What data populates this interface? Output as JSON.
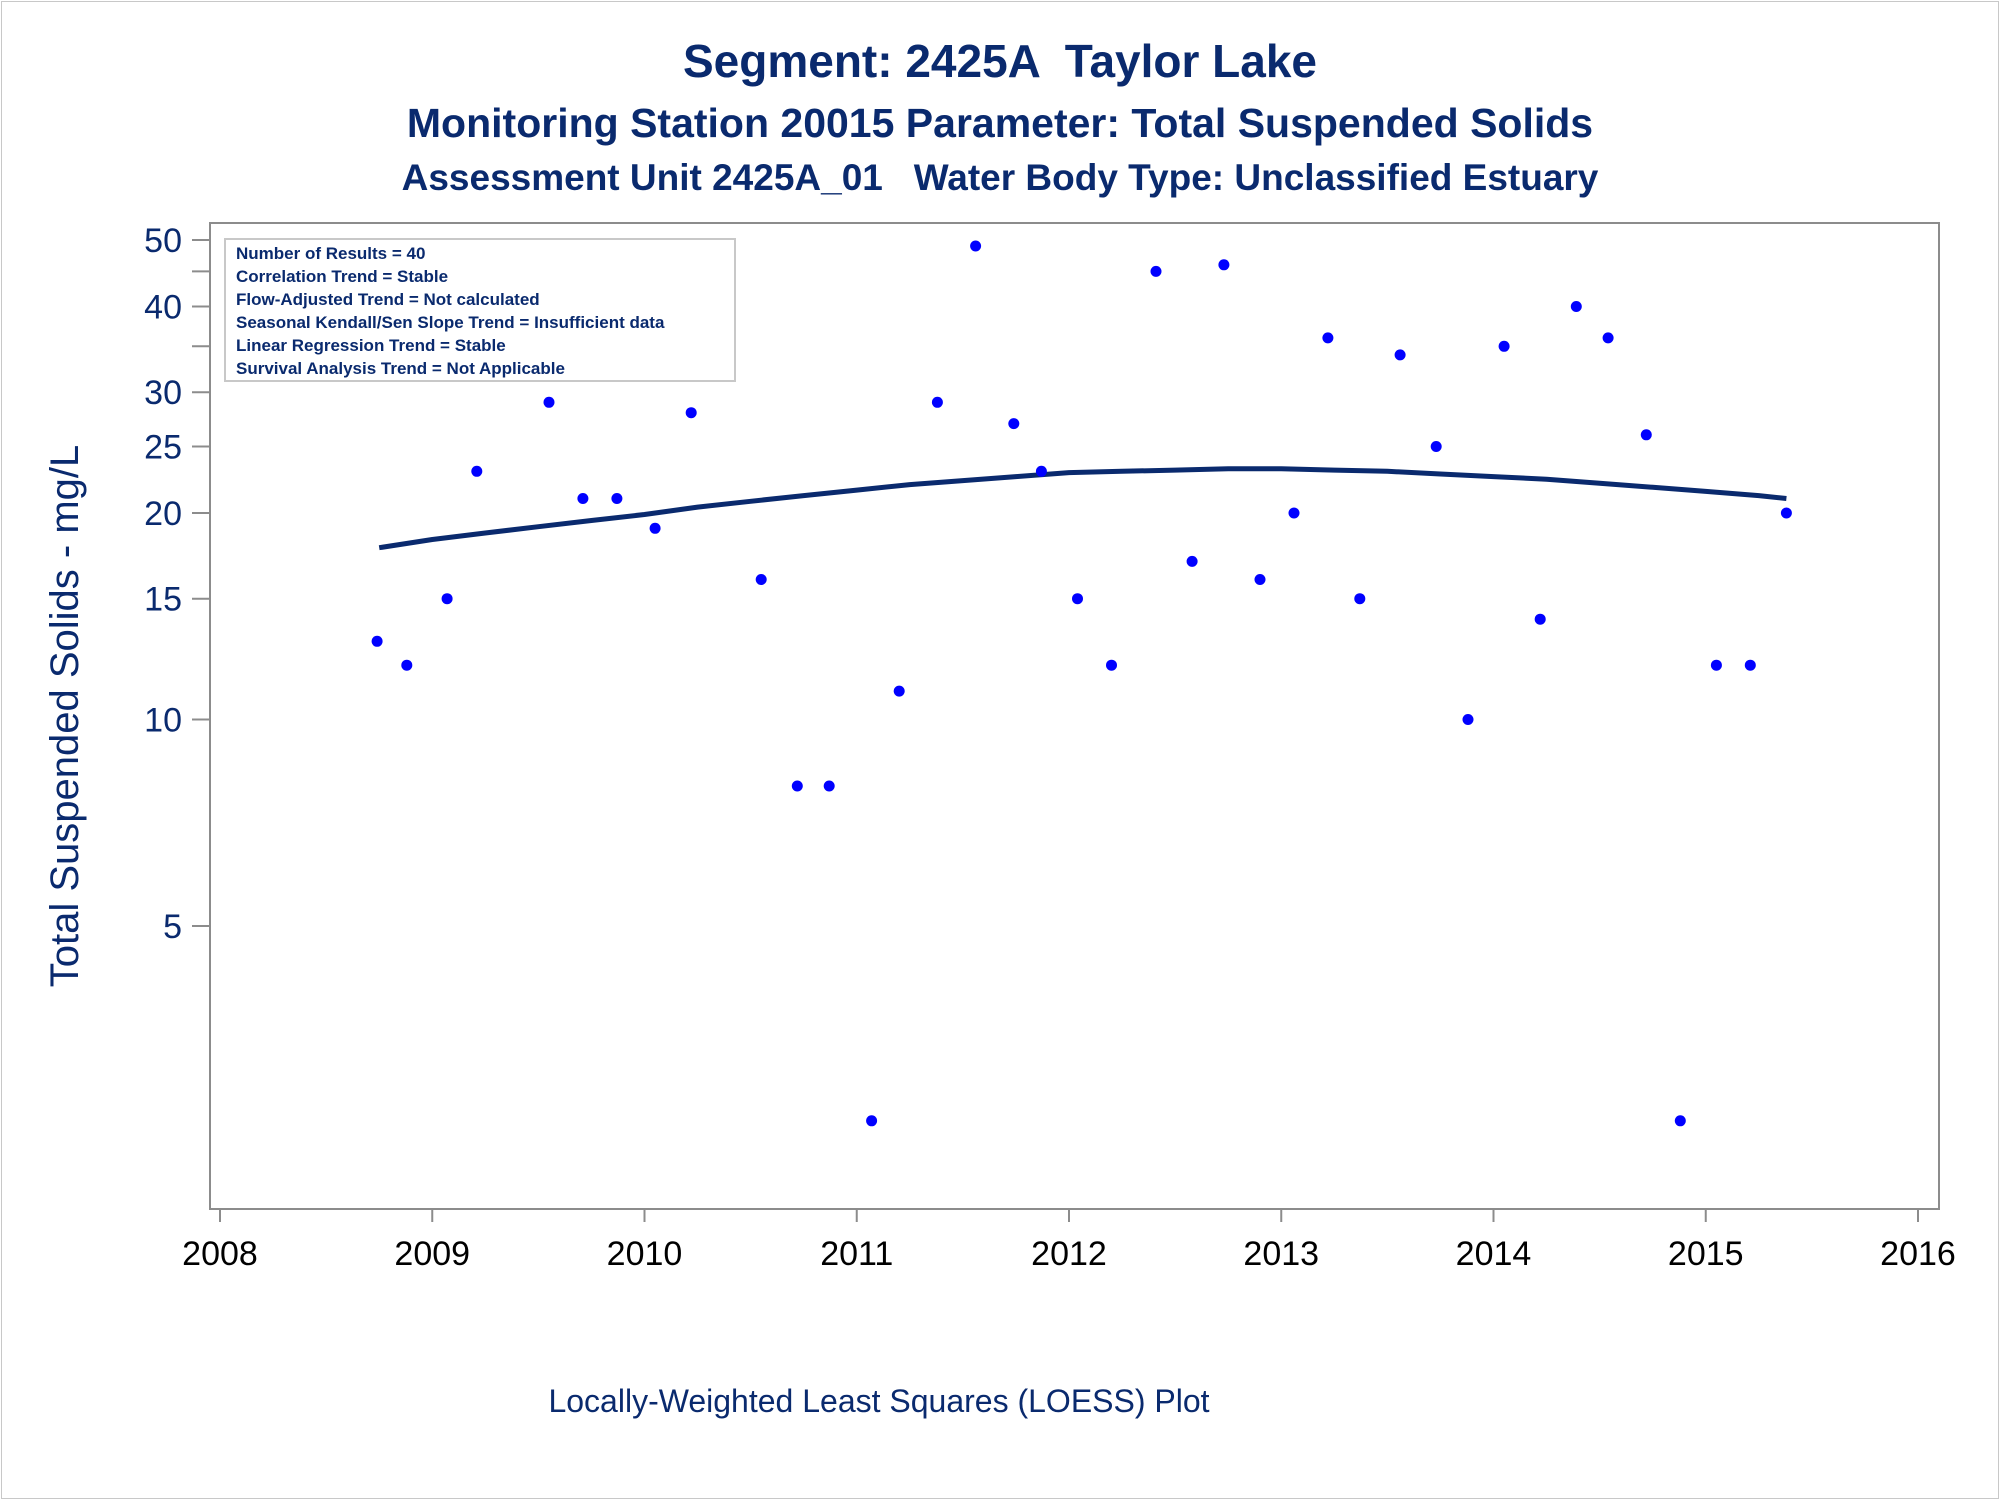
{
  "titles": {
    "line1": "Segment: 2425A  Taylor Lake",
    "line2": "Monitoring Station 20015 Parameter: Total Suspended Solids",
    "line3": "Assessment Unit 2425A_01   Water Body Type: Unclassified Estuary"
  },
  "info_box": [
    "Number of Results = 40",
    "Correlation Trend = Stable",
    "Flow-Adjusted Trend = Not calculated",
    "Seasonal Kendall/Sen Slope Trend = Insufficient data",
    "Linear Regression Trend = Stable",
    "Survival Analysis Trend = Not Applicable"
  ],
  "footer": "Locally-Weighted Least Squares (LOESS) Plot",
  "colors": {
    "text": "#0a2a6e",
    "points": "#0000ff",
    "trend": "#0a2a6e",
    "frame": "#8c8c8c"
  },
  "chart_data": {
    "type": "scatter",
    "ylabel": "Total Suspended Solids - mg/L",
    "y_scale": "log",
    "ylim": [
      2.5,
      52
    ],
    "y_ticks": [
      50,
      40,
      30,
      25,
      20,
      15,
      10,
      5
    ],
    "y_minor_ticks": [
      45,
      35
    ],
    "xlim": [
      2008,
      2016
    ],
    "x_ticks": [
      2008,
      2009,
      2010,
      2011,
      2012,
      2013,
      2014,
      2015,
      2016
    ],
    "grid": false,
    "points": [
      {
        "x": 2008.74,
        "y": 13
      },
      {
        "x": 2008.88,
        "y": 12
      },
      {
        "x": 2009.07,
        "y": 15
      },
      {
        "x": 2009.21,
        "y": 23
      },
      {
        "x": 2009.38,
        "y": 34
      },
      {
        "x": 2009.55,
        "y": 29
      },
      {
        "x": 2009.71,
        "y": 21
      },
      {
        "x": 2009.87,
        "y": 21
      },
      {
        "x": 2010.05,
        "y": 19
      },
      {
        "x": 2010.22,
        "y": 28
      },
      {
        "x": 2010.55,
        "y": 16
      },
      {
        "x": 2010.72,
        "y": 8
      },
      {
        "x": 2010.87,
        "y": 8
      },
      {
        "x": 2011.07,
        "y": 2.6
      },
      {
        "x": 2011.2,
        "y": 11
      },
      {
        "x": 2011.38,
        "y": 29
      },
      {
        "x": 2011.56,
        "y": 49
      },
      {
        "x": 2011.74,
        "y": 27
      },
      {
        "x": 2011.87,
        "y": 23
      },
      {
        "x": 2012.04,
        "y": 15
      },
      {
        "x": 2012.2,
        "y": 12
      },
      {
        "x": 2012.41,
        "y": 45
      },
      {
        "x": 2012.58,
        "y": 17
      },
      {
        "x": 2012.73,
        "y": 46
      },
      {
        "x": 2012.9,
        "y": 16
      },
      {
        "x": 2013.06,
        "y": 20
      },
      {
        "x": 2013.22,
        "y": 36
      },
      {
        "x": 2013.37,
        "y": 15
      },
      {
        "x": 2013.56,
        "y": 34
      },
      {
        "x": 2013.73,
        "y": 25
      },
      {
        "x": 2013.88,
        "y": 10
      },
      {
        "x": 2014.05,
        "y": 35
      },
      {
        "x": 2014.22,
        "y": 14
      },
      {
        "x": 2014.39,
        "y": 40
      },
      {
        "x": 2014.54,
        "y": 36
      },
      {
        "x": 2014.72,
        "y": 26
      },
      {
        "x": 2014.88,
        "y": 2.6
      },
      {
        "x": 2015.05,
        "y": 12
      },
      {
        "x": 2015.21,
        "y": 12
      },
      {
        "x": 2015.38,
        "y": 20
      }
    ],
    "loess": [
      {
        "x": 2008.75,
        "y": 17.8
      },
      {
        "x": 2009.0,
        "y": 18.3
      },
      {
        "x": 2009.25,
        "y": 18.7
      },
      {
        "x": 2009.5,
        "y": 19.1
      },
      {
        "x": 2009.75,
        "y": 19.5
      },
      {
        "x": 2010.0,
        "y": 19.9
      },
      {
        "x": 2010.25,
        "y": 20.4
      },
      {
        "x": 2010.5,
        "y": 20.8
      },
      {
        "x": 2010.75,
        "y": 21.2
      },
      {
        "x": 2011.0,
        "y": 21.6
      },
      {
        "x": 2011.25,
        "y": 22.0
      },
      {
        "x": 2011.5,
        "y": 22.3
      },
      {
        "x": 2011.75,
        "y": 22.6
      },
      {
        "x": 2012.0,
        "y": 22.9
      },
      {
        "x": 2012.25,
        "y": 23.0
      },
      {
        "x": 2012.5,
        "y": 23.1
      },
      {
        "x": 2012.75,
        "y": 23.2
      },
      {
        "x": 2013.0,
        "y": 23.2
      },
      {
        "x": 2013.25,
        "y": 23.1
      },
      {
        "x": 2013.5,
        "y": 23.0
      },
      {
        "x": 2013.75,
        "y": 22.8
      },
      {
        "x": 2014.0,
        "y": 22.6
      },
      {
        "x": 2014.25,
        "y": 22.4
      },
      {
        "x": 2014.5,
        "y": 22.1
      },
      {
        "x": 2014.75,
        "y": 21.8
      },
      {
        "x": 2015.0,
        "y": 21.5
      },
      {
        "x": 2015.25,
        "y": 21.2
      },
      {
        "x": 2015.38,
        "y": 21.0
      }
    ]
  }
}
